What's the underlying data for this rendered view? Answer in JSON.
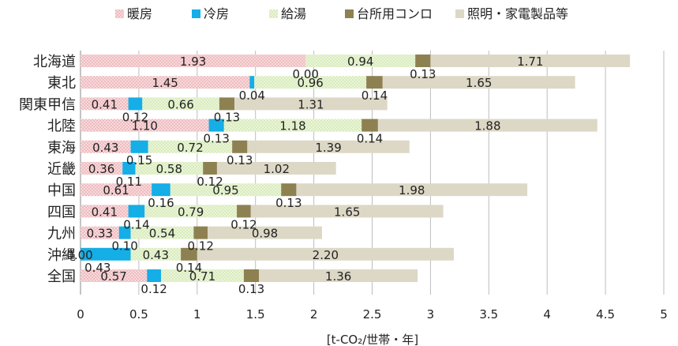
{
  "chart_data": {
    "type": "bar",
    "orientation": "horizontal",
    "stacked": true,
    "categories": [
      "北海道",
      "東北",
      "関東甲信",
      "北陸",
      "東海",
      "近畿",
      "中国",
      "四国",
      "九州",
      "沖縄",
      "全国"
    ],
    "series": [
      {
        "name": "暖房",
        "color": "#eab1b5",
        "pattern": "dots",
        "values": [
          1.93,
          1.45,
          0.41,
          1.1,
          0.43,
          0.36,
          0.61,
          0.41,
          0.33,
          0.0,
          0.57
        ]
      },
      {
        "name": "冷房",
        "color": "#15aee6",
        "values": [
          0.0,
          0.04,
          0.12,
          0.13,
          0.15,
          0.11,
          0.16,
          0.14,
          0.1,
          0.43,
          0.12
        ]
      },
      {
        "name": "給湯",
        "color": "#d6e8b6",
        "pattern": "dots",
        "values": [
          0.94,
          0.96,
          0.66,
          1.18,
          0.72,
          0.58,
          0.95,
          0.79,
          0.54,
          0.43,
          0.71
        ]
      },
      {
        "name": "台所用コンロ",
        "color": "#8e8151",
        "values": [
          0.13,
          0.14,
          0.13,
          0.14,
          0.13,
          0.12,
          0.13,
          0.12,
          0.12,
          0.14,
          0.13
        ]
      },
      {
        "name": "照明・家電製品等",
        "color": "#ddd8c6",
        "values": [
          1.71,
          1.65,
          1.31,
          1.88,
          1.39,
          1.02,
          1.98,
          1.65,
          0.98,
          2.2,
          1.36
        ]
      }
    ],
    "value_labels": [
      [
        "1.93",
        "0.00",
        "0.94",
        "0.13",
        "1.71"
      ],
      [
        "1.45",
        "0.04",
        "0.96",
        "0.14",
        "1.65"
      ],
      [
        "0.41",
        "0.12",
        "0.66",
        "0.13",
        "1.31"
      ],
      [
        "1.10",
        "0.13",
        "1.18",
        "0.14",
        "1.88"
      ],
      [
        "0.43",
        "0.15",
        "0.72",
        "0.13",
        "1.39"
      ],
      [
        "0.36",
        "0.11",
        "0.58",
        "0.12",
        "1.02"
      ],
      [
        "0.61",
        "0.16",
        "0.95",
        "0.13",
        "1.98"
      ],
      [
        "0.41",
        "0.14",
        "0.79",
        "0.12",
        "1.65"
      ],
      [
        "0.33",
        "0.10",
        "0.54",
        "0.12",
        "0.98"
      ],
      [
        "0.00",
        "0.43",
        "0.43",
        "0.14",
        "2.20"
      ],
      [
        "0.57",
        "0.12",
        "0.71",
        "0.13",
        "1.36"
      ]
    ],
    "xlim": [
      0,
      5
    ],
    "xticks": [
      "0",
      "0.5",
      "1",
      "1.5",
      "2",
      "2.5",
      "3",
      "3.5",
      "4",
      "4.5",
      "5"
    ],
    "xlabel": "[t-CO₂/世帯・年]",
    "grid": "vertical",
    "legend_position": "top"
  }
}
